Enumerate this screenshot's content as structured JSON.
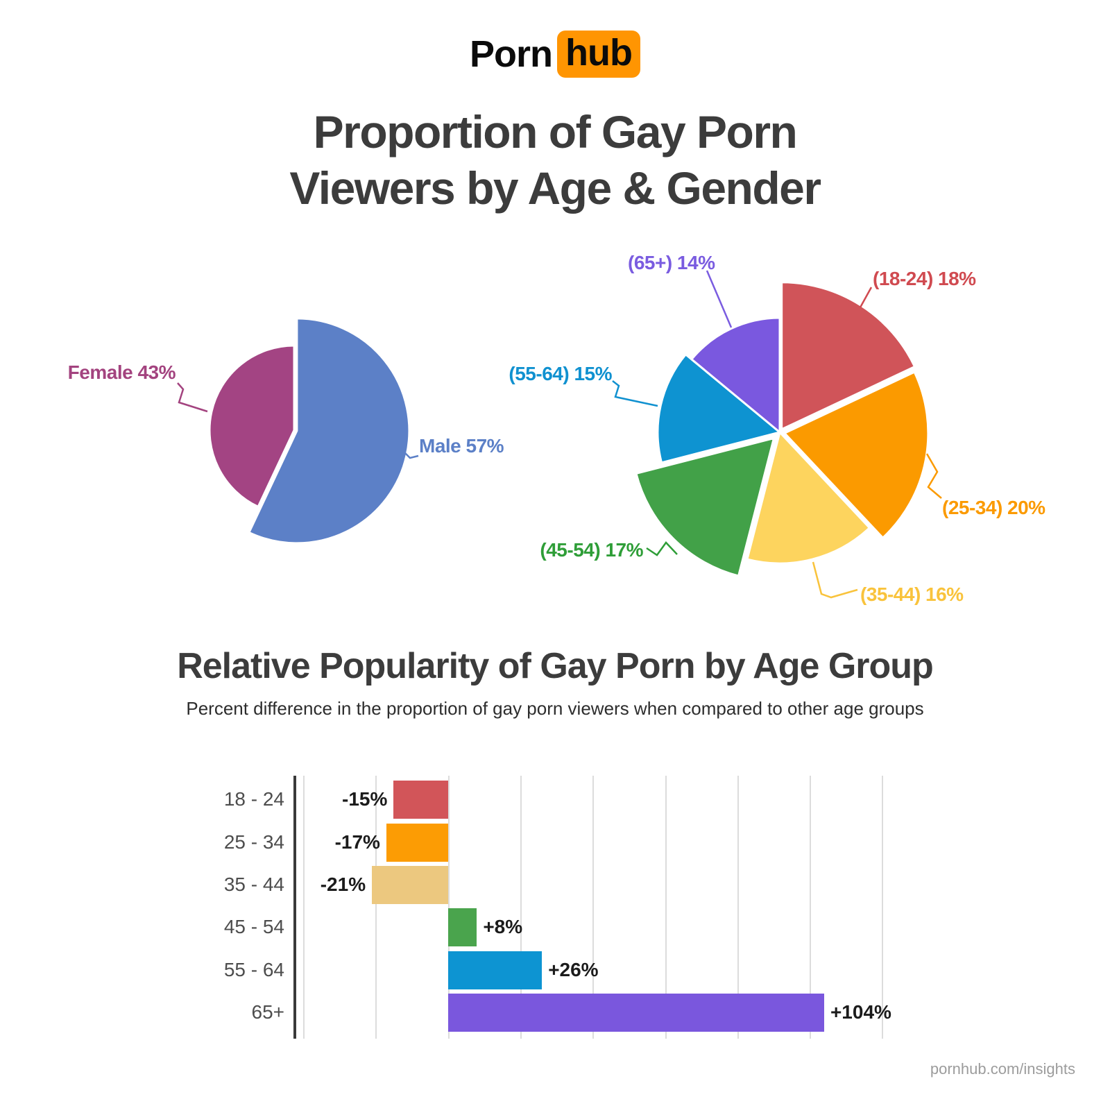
{
  "logo": {
    "part1": "Porn",
    "part2": "hub"
  },
  "header": {
    "title_line1": "Proportion of Gay Porn",
    "title_line2": "Viewers by Age & Gender"
  },
  "section2": {
    "title": "Relative Popularity of Gay Porn by Age Group",
    "subtitle": "Percent difference in the proportion of gay porn viewers when compared to other age groups"
  },
  "footer": {
    "text": "pornhub.com/insights"
  },
  "colors": {
    "brand_orange": "#FF9502",
    "title_text": "#3C3C3C",
    "axis": "#3A3A3A",
    "gridline": "#DCDCDC",
    "value_label": "#1B1B1B",
    "category_label": "#4D4D4D",
    "footer_text": "#9C9C9C"
  },
  "chart_data": [
    {
      "type": "pie",
      "name": "Proportion of Gay Porn Viewers by Gender",
      "slices": [
        {
          "label": "Male",
          "value": 57,
          "display": "Male 57%",
          "color": "#5C80C7",
          "label_color": "#5C80C7"
        },
        {
          "label": "Female",
          "value": 43,
          "display": "Female 43%",
          "color": "#A34483",
          "label_color": "#A3437F"
        }
      ]
    },
    {
      "type": "pie",
      "name": "Proportion of Gay Porn Viewers by Age",
      "slices": [
        {
          "label": "18-24",
          "value": 18,
          "display": "(18-24) 18%",
          "color": "#D05459",
          "label_color": "#D04A50"
        },
        {
          "label": "25-34",
          "value": 20,
          "display": "(25-34) 20%",
          "color": "#FB9A00",
          "label_color": "#FB9A00"
        },
        {
          "label": "35-44",
          "value": 16,
          "display": "(35-44) 16%",
          "color": "#FDD45E",
          "label_color": "#F9C33C"
        },
        {
          "label": "45-54",
          "value": 17,
          "display": "(45-54) 17%",
          "color": "#42A148",
          "label_color": "#2F9E38"
        },
        {
          "label": "55-64",
          "value": 15,
          "display": "(55-64) 15%",
          "color": "#0E93D1",
          "label_color": "#1091D0"
        },
        {
          "label": "65+",
          "value": 14,
          "display": "(65+) 14%",
          "color": "#7A58DF",
          "label_color": "#7A5CE0"
        }
      ]
    },
    {
      "type": "bar",
      "name": "Relative Popularity of Gay Porn by Age Group",
      "orientation": "horizontal",
      "categories": [
        "18 - 24",
        "25 - 34",
        "35 - 44",
        "45 - 54",
        "55 - 64",
        "65+"
      ],
      "values": [
        -15,
        -17,
        -21,
        8,
        26,
        104
      ],
      "value_labels": [
        "-15%",
        "-17%",
        "-21%",
        "+8%",
        "+26%",
        "+104%"
      ],
      "colors": [
        "#D25559",
        "#FC9C04",
        "#ECC87F",
        "#4AA44D",
        "#0D94D2",
        "#7A57DD"
      ],
      "xlim": [
        -40,
        120
      ],
      "gridline_step": 20,
      "grid": true,
      "legend": false
    }
  ]
}
